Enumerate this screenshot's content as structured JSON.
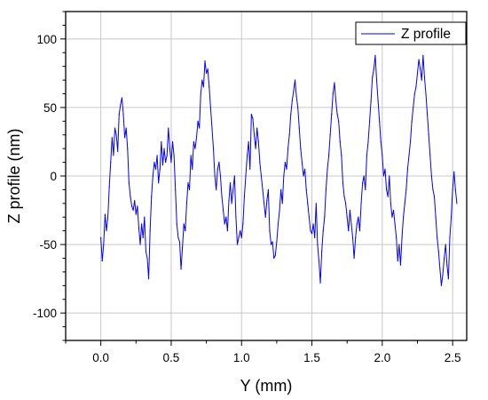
{
  "chart_data": {
    "type": "line",
    "title": "",
    "xlabel": "Y (mm)",
    "ylabel": "Z profile (nm)",
    "xlim": [
      -0.25,
      2.6
    ],
    "ylim": [
      -120,
      120
    ],
    "x_ticks": [
      0.0,
      0.5,
      1.0,
      1.5,
      2.0,
      2.5
    ],
    "x_tick_labels": [
      "0.0",
      "0.5",
      "1.0",
      "1.5",
      "2.0",
      "2.5"
    ],
    "y_ticks": [
      -100,
      -50,
      0,
      50,
      100
    ],
    "y_tick_labels": [
      "-100",
      "-50",
      "0",
      "50",
      "100"
    ],
    "grid": true,
    "legend_position": "top-right",
    "series": [
      {
        "name": "Z profile",
        "color": "#0000ff",
        "points": [
          [
            0.0,
            -45
          ],
          [
            0.01,
            -62
          ],
          [
            0.02,
            -50
          ],
          [
            0.03,
            -28
          ],
          [
            0.04,
            -40
          ],
          [
            0.05,
            -30
          ],
          [
            0.06,
            -8
          ],
          [
            0.07,
            10
          ],
          [
            0.08,
            28
          ],
          [
            0.09,
            15
          ],
          [
            0.1,
            35
          ],
          [
            0.11,
            30
          ],
          [
            0.12,
            18
          ],
          [
            0.13,
            45
          ],
          [
            0.14,
            52
          ],
          [
            0.15,
            57
          ],
          [
            0.16,
            45
          ],
          [
            0.17,
            28
          ],
          [
            0.18,
            35
          ],
          [
            0.19,
            20
          ],
          [
            0.2,
            -5
          ],
          [
            0.21,
            -15
          ],
          [
            0.22,
            -22
          ],
          [
            0.23,
            -25
          ],
          [
            0.24,
            -18
          ],
          [
            0.25,
            -28
          ],
          [
            0.26,
            -22
          ],
          [
            0.27,
            -38
          ],
          [
            0.28,
            -50
          ],
          [
            0.29,
            -35
          ],
          [
            0.3,
            -45
          ],
          [
            0.31,
            -30
          ],
          [
            0.32,
            -55
          ],
          [
            0.33,
            -60
          ],
          [
            0.34,
            -75
          ],
          [
            0.35,
            -40
          ],
          [
            0.36,
            -15
          ],
          [
            0.37,
            0
          ],
          [
            0.38,
            10
          ],
          [
            0.39,
            5
          ],
          [
            0.4,
            15
          ],
          [
            0.41,
            -5
          ],
          [
            0.42,
            5
          ],
          [
            0.43,
            25
          ],
          [
            0.44,
            8
          ],
          [
            0.45,
            20
          ],
          [
            0.46,
            10
          ],
          [
            0.47,
            15
          ],
          [
            0.48,
            35
          ],
          [
            0.49,
            20
          ],
          [
            0.5,
            10
          ],
          [
            0.51,
            25
          ],
          [
            0.52,
            15
          ],
          [
            0.53,
            -10
          ],
          [
            0.54,
            -35
          ],
          [
            0.55,
            -45
          ],
          [
            0.56,
            -48
          ],
          [
            0.57,
            -68
          ],
          [
            0.58,
            -52
          ],
          [
            0.59,
            -35
          ],
          [
            0.6,
            -40
          ],
          [
            0.61,
            -20
          ],
          [
            0.62,
            -5
          ],
          [
            0.63,
            -10
          ],
          [
            0.64,
            15
          ],
          [
            0.65,
            5
          ],
          [
            0.66,
            25
          ],
          [
            0.67,
            20
          ],
          [
            0.68,
            28
          ],
          [
            0.69,
            40
          ],
          [
            0.7,
            35
          ],
          [
            0.71,
            60
          ],
          [
            0.72,
            70
          ],
          [
            0.73,
            65
          ],
          [
            0.74,
            84
          ],
          [
            0.75,
            75
          ],
          [
            0.76,
            78
          ],
          [
            0.77,
            65
          ],
          [
            0.78,
            50
          ],
          [
            0.79,
            35
          ],
          [
            0.8,
            20
          ],
          [
            0.81,
            0
          ],
          [
            0.82,
            -10
          ],
          [
            0.83,
            5
          ],
          [
            0.84,
            10
          ],
          [
            0.85,
            0
          ],
          [
            0.86,
            -15
          ],
          [
            0.87,
            -25
          ],
          [
            0.88,
            -35
          ],
          [
            0.89,
            -30
          ],
          [
            0.9,
            -40
          ],
          [
            0.91,
            -18
          ],
          [
            0.92,
            -5
          ],
          [
            0.93,
            -20
          ],
          [
            0.94,
            -10
          ],
          [
            0.95,
            0
          ],
          [
            0.96,
            -30
          ],
          [
            0.97,
            -50
          ],
          [
            0.98,
            -45
          ],
          [
            0.99,
            -40
          ],
          [
            1.0,
            -45
          ],
          [
            1.01,
            -35
          ],
          [
            1.02,
            -15
          ],
          [
            1.03,
            0
          ],
          [
            1.04,
            15
          ],
          [
            1.05,
            25
          ],
          [
            1.06,
            5
          ],
          [
            1.07,
            45
          ],
          [
            1.08,
            42
          ],
          [
            1.09,
            30
          ],
          [
            1.1,
            20
          ],
          [
            1.11,
            35
          ],
          [
            1.12,
            25
          ],
          [
            1.13,
            10
          ],
          [
            1.14,
            0
          ],
          [
            1.15,
            -10
          ],
          [
            1.16,
            -20
          ],
          [
            1.17,
            -30
          ],
          [
            1.18,
            -18
          ],
          [
            1.19,
            -10
          ],
          [
            1.2,
            -40
          ],
          [
            1.21,
            -50
          ],
          [
            1.22,
            -48
          ],
          [
            1.23,
            -60
          ],
          [
            1.24,
            -58
          ],
          [
            1.25,
            -48
          ],
          [
            1.26,
            -35
          ],
          [
            1.27,
            -25
          ],
          [
            1.28,
            -10
          ],
          [
            1.29,
            -20
          ],
          [
            1.3,
            0
          ],
          [
            1.31,
            10
          ],
          [
            1.32,
            5
          ],
          [
            1.33,
            20
          ],
          [
            1.34,
            30
          ],
          [
            1.35,
            45
          ],
          [
            1.36,
            55
          ],
          [
            1.37,
            62
          ],
          [
            1.38,
            70
          ],
          [
            1.39,
            58
          ],
          [
            1.4,
            50
          ],
          [
            1.41,
            35
          ],
          [
            1.42,
            20
          ],
          [
            1.43,
            10
          ],
          [
            1.44,
            0
          ],
          [
            1.45,
            5
          ],
          [
            1.46,
            -10
          ],
          [
            1.47,
            -20
          ],
          [
            1.48,
            -30
          ],
          [
            1.49,
            -40
          ],
          [
            1.5,
            -42
          ],
          [
            1.51,
            -35
          ],
          [
            1.52,
            -45
          ],
          [
            1.53,
            -20
          ],
          [
            1.54,
            -50
          ],
          [
            1.55,
            -62
          ],
          [
            1.56,
            -78
          ],
          [
            1.57,
            -55
          ],
          [
            1.58,
            -40
          ],
          [
            1.59,
            -30
          ],
          [
            1.6,
            -10
          ],
          [
            1.61,
            5
          ],
          [
            1.62,
            15
          ],
          [
            1.63,
            30
          ],
          [
            1.64,
            45
          ],
          [
            1.65,
            60
          ],
          [
            1.66,
            68
          ],
          [
            1.67,
            55
          ],
          [
            1.68,
            45
          ],
          [
            1.69,
            40
          ],
          [
            1.7,
            25
          ],
          [
            1.71,
            15
          ],
          [
            1.72,
            -5
          ],
          [
            1.73,
            -15
          ],
          [
            1.74,
            -20
          ],
          [
            1.75,
            -30
          ],
          [
            1.76,
            -40
          ],
          [
            1.77,
            -25
          ],
          [
            1.78,
            -35
          ],
          [
            1.79,
            -45
          ],
          [
            1.8,
            -60
          ],
          [
            1.81,
            -45
          ],
          [
            1.82,
            -35
          ],
          [
            1.83,
            -30
          ],
          [
            1.84,
            -40
          ],
          [
            1.85,
            -20
          ],
          [
            1.86,
            -5
          ],
          [
            1.87,
            0
          ],
          [
            1.88,
            -10
          ],
          [
            1.89,
            15
          ],
          [
            1.9,
            25
          ],
          [
            1.91,
            40
          ],
          [
            1.92,
            55
          ],
          [
            1.93,
            72
          ],
          [
            1.94,
            78
          ],
          [
            1.95,
            88
          ],
          [
            1.96,
            70
          ],
          [
            1.97,
            55
          ],
          [
            1.98,
            40
          ],
          [
            1.99,
            25
          ],
          [
            2.0,
            15
          ],
          [
            2.01,
            0
          ],
          [
            2.02,
            5
          ],
          [
            2.03,
            -10
          ],
          [
            2.04,
            -15
          ],
          [
            2.05,
            0
          ],
          [
            2.06,
            -20
          ],
          [
            2.07,
            -30
          ],
          [
            2.08,
            -25
          ],
          [
            2.09,
            -35
          ],
          [
            2.1,
            -45
          ],
          [
            2.11,
            -62
          ],
          [
            2.12,
            -50
          ],
          [
            2.13,
            -65
          ],
          [
            2.14,
            -45
          ],
          [
            2.15,
            -30
          ],
          [
            2.16,
            -20
          ],
          [
            2.17,
            -10
          ],
          [
            2.18,
            5
          ],
          [
            2.19,
            15
          ],
          [
            2.2,
            25
          ],
          [
            2.21,
            40
          ],
          [
            2.22,
            50
          ],
          [
            2.23,
            60
          ],
          [
            2.24,
            65
          ],
          [
            2.25,
            75
          ],
          [
            2.26,
            85
          ],
          [
            2.27,
            78
          ],
          [
            2.28,
            70
          ],
          [
            2.29,
            88
          ],
          [
            2.3,
            72
          ],
          [
            2.31,
            60
          ],
          [
            2.32,
            45
          ],
          [
            2.33,
            30
          ],
          [
            2.34,
            15
          ],
          [
            2.35,
            0
          ],
          [
            2.36,
            -10
          ],
          [
            2.37,
            -15
          ],
          [
            2.38,
            -30
          ],
          [
            2.39,
            -45
          ],
          [
            2.4,
            -55
          ],
          [
            2.41,
            -68
          ],
          [
            2.42,
            -80
          ],
          [
            2.43,
            -72
          ],
          [
            2.44,
            -60
          ],
          [
            2.45,
            -50
          ],
          [
            2.46,
            -65
          ],
          [
            2.47,
            -75
          ],
          [
            2.48,
            -45
          ],
          [
            2.49,
            -30
          ],
          [
            2.5,
            -10
          ],
          [
            2.51,
            3
          ],
          [
            2.52,
            -10
          ],
          [
            2.53,
            -20
          ]
        ]
      }
    ]
  }
}
